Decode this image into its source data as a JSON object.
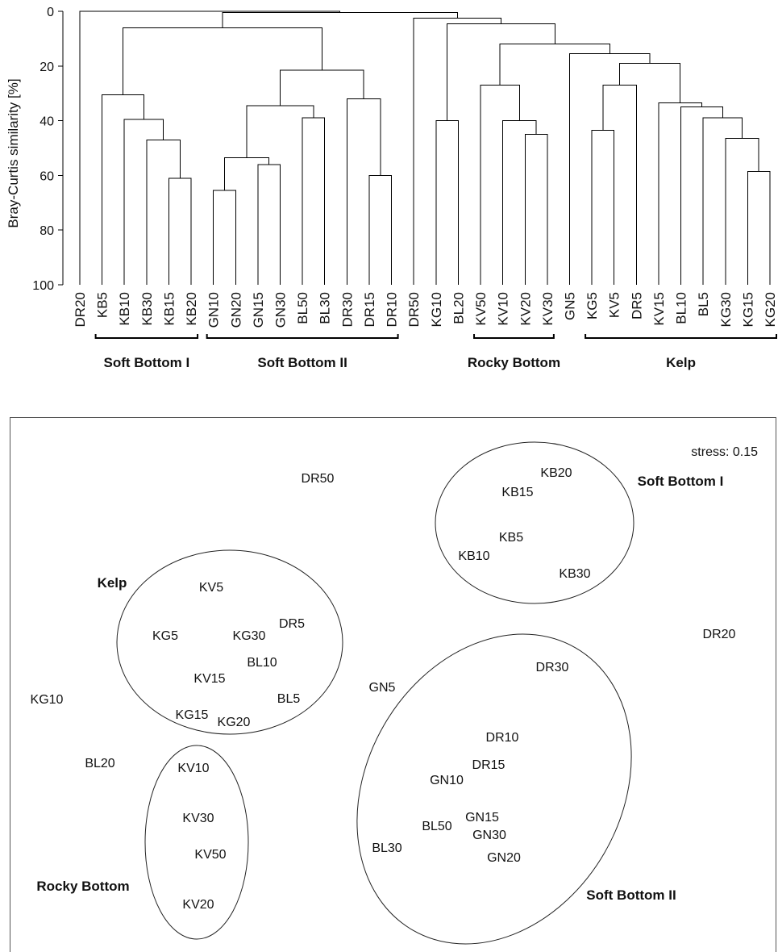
{
  "chart_data": [
    {
      "type": "dendrogram",
      "ylabel": "Bray-Curtis similarity [%]",
      "ylim": [
        0,
        100
      ],
      "yticks": [
        "0",
        "20",
        "40",
        "60",
        "80",
        "100"
      ],
      "leaves": [
        "DR20",
        "KB5",
        "KB10",
        "KB30",
        "KB15",
        "KB20",
        "GN10",
        "GN20",
        "GN15",
        "GN30",
        "BL50",
        "BL30",
        "DR30",
        "DR15",
        "DR10",
        "DR50",
        "KG10",
        "BL20",
        "KV50",
        "KV10",
        "KV20",
        "KV30",
        "GN5",
        "KG5",
        "KV5",
        "DR5",
        "KV15",
        "BL10",
        "BL5",
        "KG30",
        "KG15",
        "KG20"
      ],
      "merges": [
        {
          "a": "KB15",
          "b": "KB20",
          "similarity": 61
        },
        {
          "a": "KB30",
          "b": "C1",
          "similarity": 47
        },
        {
          "a": "KB10",
          "b": "C2",
          "similarity": 39.5
        },
        {
          "a": "KB5",
          "b": "C3",
          "similarity": 30.5
        },
        {
          "a": "GN10",
          "b": "GN20",
          "similarity": 65.5
        },
        {
          "a": "GN15",
          "b": "GN30",
          "similarity": 56
        },
        {
          "a": "C5",
          "b": "C6",
          "similarity": 53.5
        },
        {
          "a": "BL50",
          "b": "BL30",
          "similarity": 39
        },
        {
          "a": "C7",
          "b": "C8",
          "similarity": 34.5
        },
        {
          "a": "DR15",
          "b": "DR10",
          "similarity": 60
        },
        {
          "a": "DR30",
          "b": "C10",
          "similarity": 32
        },
        {
          "a": "C9",
          "b": "C11",
          "similarity": 21.5
        },
        {
          "a": "C4",
          "b": "C12",
          "similarity": 6
        },
        {
          "a": "KG10",
          "b": "BL20",
          "similarity": 40
        },
        {
          "a": "KV20",
          "b": "KV30",
          "similarity": 45
        },
        {
          "a": "KV10",
          "b": "C15",
          "similarity": 40
        },
        {
          "a": "KV50",
          "b": "C16",
          "similarity": 27
        },
        {
          "a": "KG15",
          "b": "KG20",
          "similarity": 58.5
        },
        {
          "a": "KG30",
          "b": "C18",
          "similarity": 46.5
        },
        {
          "a": "BL5",
          "b": "C19",
          "similarity": 39
        },
        {
          "a": "BL10",
          "b": "C20",
          "similarity": 35
        },
        {
          "a": "KV15",
          "b": "C21",
          "similarity": 33.5
        },
        {
          "a": "KG5",
          "b": "KV5",
          "similarity": 43.5
        },
        {
          "a": "C23",
          "b": "DR5",
          "similarity": 27
        },
        {
          "a": "C24",
          "b": "C22",
          "similarity": 19
        },
        {
          "a": "GN5",
          "b": "C25",
          "similarity": 15.5
        },
        {
          "a": "C17",
          "b": "C26",
          "similarity": 12
        },
        {
          "a": "C14",
          "b": "C27",
          "similarity": 4.5
        },
        {
          "a": "DR50",
          "b": "C28",
          "similarity": 2.5
        },
        {
          "a": "C13",
          "b": "C29",
          "similarity": 0.5
        },
        {
          "a": "DR20",
          "b": "C30",
          "similarity": 0
        }
      ],
      "groups": [
        {
          "label": "Soft Bottom I",
          "from": "KB5",
          "to": "KB20"
        },
        {
          "label": "Soft Bottom II",
          "from": "GN10",
          "to": "DR10"
        },
        {
          "label": "Rocky Bottom",
          "from": "KV50",
          "to": "KV30"
        },
        {
          "label": "Kelp",
          "from": "KG5",
          "to": "KG20"
        }
      ]
    },
    {
      "type": "scatter",
      "note": "stress: 0.15",
      "points": [
        {
          "label": "KB20",
          "x": 690,
          "y": 585
        },
        {
          "label": "KB15",
          "x": 642,
          "y": 609
        },
        {
          "label": "KB5",
          "x": 634,
          "y": 665
        },
        {
          "label": "KB10",
          "x": 588,
          "y": 688
        },
        {
          "label": "KB30",
          "x": 713,
          "y": 710
        },
        {
          "label": "DR50",
          "x": 394,
          "y": 592
        },
        {
          "label": "DR20",
          "x": 892,
          "y": 785
        },
        {
          "label": "KV5",
          "x": 262,
          "y": 727
        },
        {
          "label": "KG5",
          "x": 205,
          "y": 787
        },
        {
          "label": "KG30",
          "x": 309,
          "y": 787
        },
        {
          "label": "DR5",
          "x": 362,
          "y": 772
        },
        {
          "label": "BL10",
          "x": 325,
          "y": 820
        },
        {
          "label": "KV15",
          "x": 260,
          "y": 840
        },
        {
          "label": "BL5",
          "x": 358,
          "y": 865
        },
        {
          "label": "KG15",
          "x": 238,
          "y": 885
        },
        {
          "label": "KG20",
          "x": 290,
          "y": 894
        },
        {
          "label": "KG10",
          "x": 58,
          "y": 866
        },
        {
          "label": "GN5",
          "x": 474,
          "y": 851
        },
        {
          "label": "BL20",
          "x": 124,
          "y": 945
        },
        {
          "label": "KV10",
          "x": 240,
          "y": 951
        },
        {
          "label": "KV30",
          "x": 246,
          "y": 1013
        },
        {
          "label": "KV50",
          "x": 261,
          "y": 1058
        },
        {
          "label": "KV20",
          "x": 246,
          "y": 1120
        },
        {
          "label": "DR30",
          "x": 685,
          "y": 826
        },
        {
          "label": "DR10",
          "x": 623,
          "y": 913
        },
        {
          "label": "DR15",
          "x": 606,
          "y": 947
        },
        {
          "label": "GN10",
          "x": 554,
          "y": 966
        },
        {
          "label": "GN15",
          "x": 598,
          "y": 1012
        },
        {
          "label": "BL50",
          "x": 542,
          "y": 1023
        },
        {
          "label": "GN30",
          "x": 607,
          "y": 1034
        },
        {
          "label": "BL30",
          "x": 480,
          "y": 1050
        },
        {
          "label": "GN20",
          "x": 625,
          "y": 1062
        }
      ],
      "groups": [
        {
          "label": "Soft Bottom I"
        },
        {
          "label": "Kelp"
        },
        {
          "label": "Rocky Bottom"
        },
        {
          "label": "Soft Bottom II"
        }
      ]
    }
  ]
}
